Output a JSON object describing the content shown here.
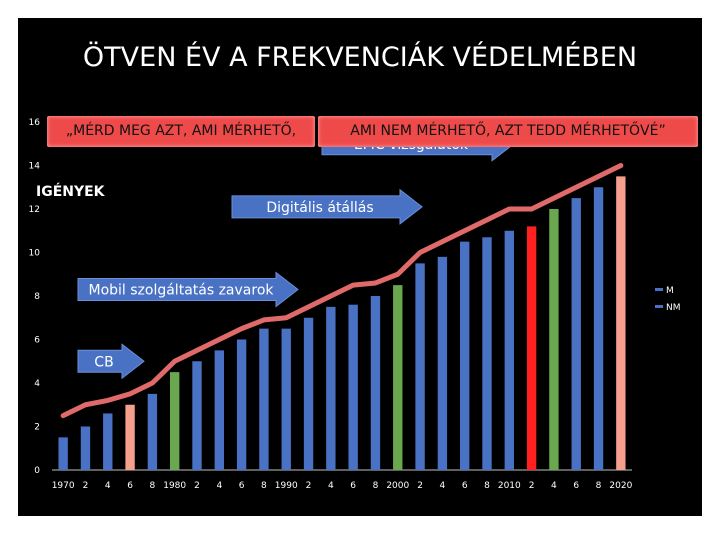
{
  "title": "ÖTVEN ÉV  A FREKVENCIÁK VÉDELMÉBEN",
  "banners": {
    "left": "„MÉRD MEG AZT, AMI MÉRHETŐ,",
    "right": "AMI NEM MÉRHETŐ, AZT TEDD MÉRHETŐVÉ”"
  },
  "needs_label": "IGÉNYEK",
  "chart_data": {
    "type": "bar",
    "ylim": [
      0,
      16
    ],
    "yticks": [
      0,
      2,
      4,
      6,
      8,
      10,
      12,
      14,
      16
    ],
    "grid": false,
    "categories": [
      "1970",
      "2",
      "4",
      "6",
      "8",
      "1980",
      "2",
      "4",
      "6",
      "8",
      "1990",
      "2",
      "4",
      "6",
      "8",
      "2000",
      "2",
      "4",
      "6",
      "8",
      "2010",
      "2",
      "4",
      "6",
      "8",
      "2020"
    ],
    "bars": [
      {
        "value": 1.5,
        "color": "#4a72c4"
      },
      {
        "value": 2.0,
        "color": "#4a72c4"
      },
      {
        "value": 2.6,
        "color": "#4a72c4"
      },
      {
        "value": 3.0,
        "color": "#f4a08c"
      },
      {
        "value": 3.5,
        "color": "#4a72c4"
      },
      {
        "value": 4.5,
        "color": "#6aa84f"
      },
      {
        "value": 5.0,
        "color": "#4a72c4"
      },
      {
        "value": 5.5,
        "color": "#4a72c4"
      },
      {
        "value": 6.0,
        "color": "#4a72c4"
      },
      {
        "value": 6.5,
        "color": "#4a72c4"
      },
      {
        "value": 6.5,
        "color": "#4a72c4"
      },
      {
        "value": 7.0,
        "color": "#4a72c4"
      },
      {
        "value": 7.5,
        "color": "#4a72c4"
      },
      {
        "value": 7.6,
        "color": "#4a72c4"
      },
      {
        "value": 8.0,
        "color": "#4a72c4"
      },
      {
        "value": 8.5,
        "color": "#6aa84f"
      },
      {
        "value": 9.5,
        "color": "#4a72c4"
      },
      {
        "value": 9.8,
        "color": "#4a72c4"
      },
      {
        "value": 10.5,
        "color": "#4a72c4"
      },
      {
        "value": 10.7,
        "color": "#4a72c4"
      },
      {
        "value": 11.0,
        "color": "#4a72c4"
      },
      {
        "value": 11.2,
        "color": "#ff2020"
      },
      {
        "value": 12.0,
        "color": "#6aa84f"
      },
      {
        "value": 12.5,
        "color": "#4a72c4"
      },
      {
        "value": 13.0,
        "color": "#4a72c4"
      },
      {
        "value": 13.5,
        "color": "#f4a08c"
      }
    ],
    "needs_line": [
      2.5,
      3.0,
      3.2,
      3.5,
      4.0,
      5.0,
      5.5,
      6.0,
      6.5,
      6.9,
      7.0,
      7.5,
      8.0,
      8.5,
      8.6,
      9.0,
      10.0,
      10.5,
      11.0,
      11.5,
      12.0,
      12.0,
      12.5,
      13.0,
      13.5,
      14.0
    ],
    "needs_line_color": "#e06a6a",
    "legend": [
      {
        "label": "M",
        "color": "#4a72c4"
      },
      {
        "label": "NM",
        "color": "#4a72c4"
      }
    ],
    "legend_position": "right",
    "arrows": [
      {
        "label": "EMC vizsgálatok",
        "y": 15.0
      },
      {
        "label": "Digitális átállás",
        "y": 12.1
      },
      {
        "label": "Mobil szolgáltatás zavarok",
        "y": 8.3
      },
      {
        "label": "CB",
        "y": 5.0
      }
    ],
    "arrow_color": "#4a72c4"
  }
}
